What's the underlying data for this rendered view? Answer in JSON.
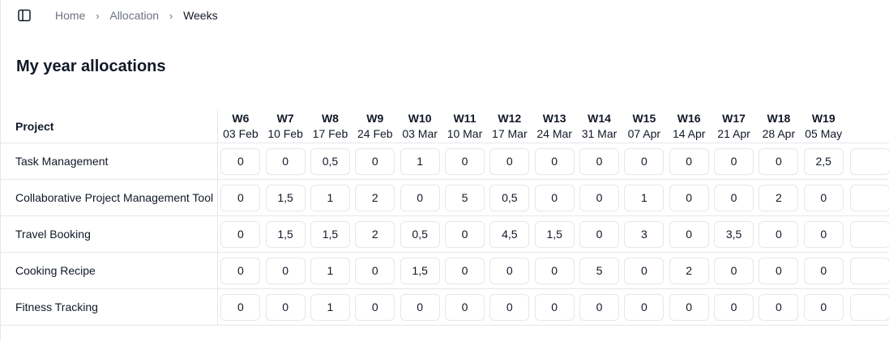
{
  "breadcrumb": {
    "items": [
      {
        "label": "Home"
      },
      {
        "label": "Allocation"
      },
      {
        "label": "Weeks"
      }
    ]
  },
  "page": {
    "title": "My year allocations"
  },
  "table": {
    "project_header": "Project",
    "weeks": [
      {
        "num": "W6",
        "date": "03 Feb"
      },
      {
        "num": "W7",
        "date": "10 Feb"
      },
      {
        "num": "W8",
        "date": "17 Feb"
      },
      {
        "num": "W9",
        "date": "24 Feb"
      },
      {
        "num": "W10",
        "date": "03 Mar"
      },
      {
        "num": "W11",
        "date": "10 Mar"
      },
      {
        "num": "W12",
        "date": "17 Mar"
      },
      {
        "num": "W13",
        "date": "24 Mar"
      },
      {
        "num": "W14",
        "date": "31 Mar"
      },
      {
        "num": "W15",
        "date": "07 Apr"
      },
      {
        "num": "W16",
        "date": "14 Apr"
      },
      {
        "num": "W17",
        "date": "21 Apr"
      },
      {
        "num": "W18",
        "date": "28 Apr"
      },
      {
        "num": "W19",
        "date": "05 May"
      }
    ],
    "rows": [
      {
        "project": "Task Management",
        "values": [
          "0",
          "0",
          "0,5",
          "0",
          "1",
          "0",
          "0",
          "0",
          "0",
          "0",
          "0",
          "0",
          "0",
          "2,5"
        ]
      },
      {
        "project": "Collaborative Project Management Tool",
        "values": [
          "0",
          "1,5",
          "1",
          "2",
          "0",
          "5",
          "0,5",
          "0",
          "0",
          "1",
          "0",
          "0",
          "2",
          "0"
        ]
      },
      {
        "project": "Travel Booking",
        "values": [
          "0",
          "1,5",
          "1,5",
          "2",
          "0,5",
          "0",
          "4,5",
          "1,5",
          "0",
          "3",
          "0",
          "3,5",
          "0",
          "0"
        ]
      },
      {
        "project": "Cooking Recipe",
        "values": [
          "0",
          "0",
          "1",
          "0",
          "1,5",
          "0",
          "0",
          "0",
          "5",
          "0",
          "2",
          "0",
          "0",
          "0"
        ]
      },
      {
        "project": "Fitness Tracking",
        "values": [
          "0",
          "0",
          "1",
          "0",
          "0",
          "0",
          "0",
          "0",
          "0",
          "0",
          "0",
          "0",
          "0",
          "0"
        ]
      }
    ]
  }
}
